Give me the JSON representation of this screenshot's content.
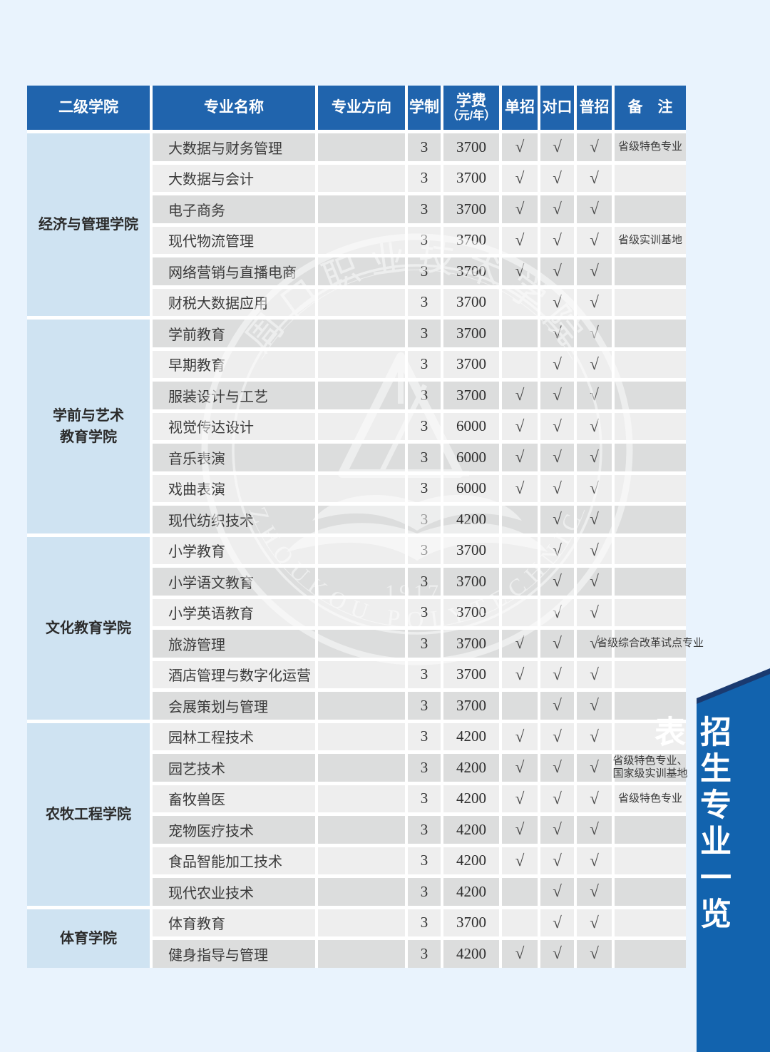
{
  "page": {
    "background": "#e9f3fd"
  },
  "banner": {
    "text": "招生专业一览表",
    "bg": "#1263ae",
    "fold": "#1a3a70",
    "text_color": "#ffffff"
  },
  "watermark": {
    "top_arc": "周口职业技术学院",
    "bottom_arc": "ZHOUKOU  POLYTECHNIC",
    "year": "1917"
  },
  "table": {
    "check_glyph": "√",
    "colors": {
      "header_bg": "#2064ad",
      "header_text": "#ffffff",
      "college_bg": "#cfe3f2",
      "row_dark": "#dcdddd",
      "row_light": "#eeeeee"
    },
    "header": {
      "college": "二级学院",
      "major": "专业名称",
      "direction": "专业方向",
      "duration": "学制",
      "tuition_line1": "学费",
      "tuition_line2": "（元/年）",
      "single": "单招",
      "counterpart": "对口",
      "general": "普招",
      "remarks": "备　注"
    },
    "groups": [
      {
        "college_lines": [
          "经济与管理学院"
        ],
        "majors": [
          {
            "name": "大数据与财务管理",
            "direction": "",
            "duration": "3",
            "tuition": "3700",
            "single": true,
            "counterpart": true,
            "general": true,
            "remarks": [
              "省级特色专业"
            ]
          },
          {
            "name": "大数据与会计",
            "direction": "",
            "duration": "3",
            "tuition": "3700",
            "single": true,
            "counterpart": true,
            "general": true,
            "remarks": []
          },
          {
            "name": "电子商务",
            "direction": "",
            "duration": "3",
            "tuition": "3700",
            "single": true,
            "counterpart": true,
            "general": true,
            "remarks": []
          },
          {
            "name": "现代物流管理",
            "direction": "",
            "duration": "3",
            "tuition": "3700",
            "single": true,
            "counterpart": true,
            "general": true,
            "remarks": [
              "省级实训基地"
            ]
          },
          {
            "name": "网络营销与直播电商",
            "direction": "",
            "duration": "3",
            "tuition": "3700",
            "single": true,
            "counterpart": true,
            "general": true,
            "remarks": []
          },
          {
            "name": "财税大数据应用",
            "direction": "",
            "duration": "3",
            "tuition": "3700",
            "single": false,
            "counterpart": true,
            "general": true,
            "remarks": []
          }
        ]
      },
      {
        "college_lines": [
          "学前与艺术",
          "教育学院"
        ],
        "majors": [
          {
            "name": "学前教育",
            "direction": "",
            "duration": "3",
            "tuition": "3700",
            "single": false,
            "counterpart": true,
            "general": true,
            "remarks": []
          },
          {
            "name": "早期教育",
            "direction": "",
            "duration": "3",
            "tuition": "3700",
            "single": false,
            "counterpart": true,
            "general": true,
            "remarks": []
          },
          {
            "name": "服装设计与工艺",
            "direction": "",
            "duration": "3",
            "tuition": "3700",
            "single": true,
            "counterpart": true,
            "general": true,
            "remarks": []
          },
          {
            "name": "视觉传达设计",
            "direction": "",
            "duration": "3",
            "tuition": "6000",
            "single": true,
            "counterpart": true,
            "general": true,
            "remarks": []
          },
          {
            "name": "音乐表演",
            "direction": "",
            "duration": "3",
            "tuition": "6000",
            "single": true,
            "counterpart": true,
            "general": true,
            "remarks": []
          },
          {
            "name": "戏曲表演",
            "direction": "",
            "duration": "3",
            "tuition": "6000",
            "single": true,
            "counterpart": true,
            "general": true,
            "remarks": []
          },
          {
            "name": "现代纺织技术",
            "direction": "",
            "duration": "3",
            "tuition": "4200",
            "single": false,
            "counterpart": true,
            "general": true,
            "remarks": []
          }
        ]
      },
      {
        "college_lines": [
          "文化教育学院"
        ],
        "majors": [
          {
            "name": "小学教育",
            "direction": "",
            "duration": "3",
            "tuition": "3700",
            "single": false,
            "counterpart": true,
            "general": true,
            "remarks": []
          },
          {
            "name": "小学语文教育",
            "direction": "",
            "duration": "3",
            "tuition": "3700",
            "single": false,
            "counterpart": true,
            "general": true,
            "remarks": []
          },
          {
            "name": "小学英语教育",
            "direction": "",
            "duration": "3",
            "tuition": "3700",
            "single": false,
            "counterpart": true,
            "general": true,
            "remarks": []
          },
          {
            "name": "旅游管理",
            "direction": "",
            "duration": "3",
            "tuition": "3700",
            "single": true,
            "counterpart": true,
            "general": true,
            "remarks": [
              "省级综合改革试点专业"
            ]
          },
          {
            "name": "酒店管理与数字化运营",
            "direction": "",
            "duration": "3",
            "tuition": "3700",
            "single": true,
            "counterpart": true,
            "general": true,
            "remarks": []
          },
          {
            "name": "会展策划与管理",
            "direction": "",
            "duration": "3",
            "tuition": "3700",
            "single": false,
            "counterpart": true,
            "general": true,
            "remarks": []
          }
        ]
      },
      {
        "college_lines": [
          "农牧工程学院"
        ],
        "majors": [
          {
            "name": "园林工程技术",
            "direction": "",
            "duration": "3",
            "tuition": "4200",
            "single": true,
            "counterpart": true,
            "general": true,
            "remarks": []
          },
          {
            "name": "园艺技术",
            "direction": "",
            "duration": "3",
            "tuition": "4200",
            "single": true,
            "counterpart": true,
            "general": true,
            "remarks": [
              "省级特色专业、",
              "国家级实训基地"
            ]
          },
          {
            "name": "畜牧兽医",
            "direction": "",
            "duration": "3",
            "tuition": "4200",
            "single": true,
            "counterpart": true,
            "general": true,
            "remarks": [
              "省级特色专业"
            ]
          },
          {
            "name": "宠物医疗技术",
            "direction": "",
            "duration": "3",
            "tuition": "4200",
            "single": true,
            "counterpart": true,
            "general": true,
            "remarks": []
          },
          {
            "name": "食品智能加工技术",
            "direction": "",
            "duration": "3",
            "tuition": "4200",
            "single": true,
            "counterpart": true,
            "general": true,
            "remarks": []
          },
          {
            "name": "现代农业技术",
            "direction": "",
            "duration": "3",
            "tuition": "4200",
            "single": false,
            "counterpart": true,
            "general": true,
            "remarks": []
          }
        ]
      },
      {
        "college_lines": [
          "体育学院"
        ],
        "majors": [
          {
            "name": "体育教育",
            "direction": "",
            "duration": "3",
            "tuition": "3700",
            "single": false,
            "counterpart": true,
            "general": true,
            "remarks": []
          },
          {
            "name": "健身指导与管理",
            "direction": "",
            "duration": "3",
            "tuition": "4200",
            "single": true,
            "counterpart": true,
            "general": true,
            "remarks": []
          }
        ]
      }
    ]
  }
}
